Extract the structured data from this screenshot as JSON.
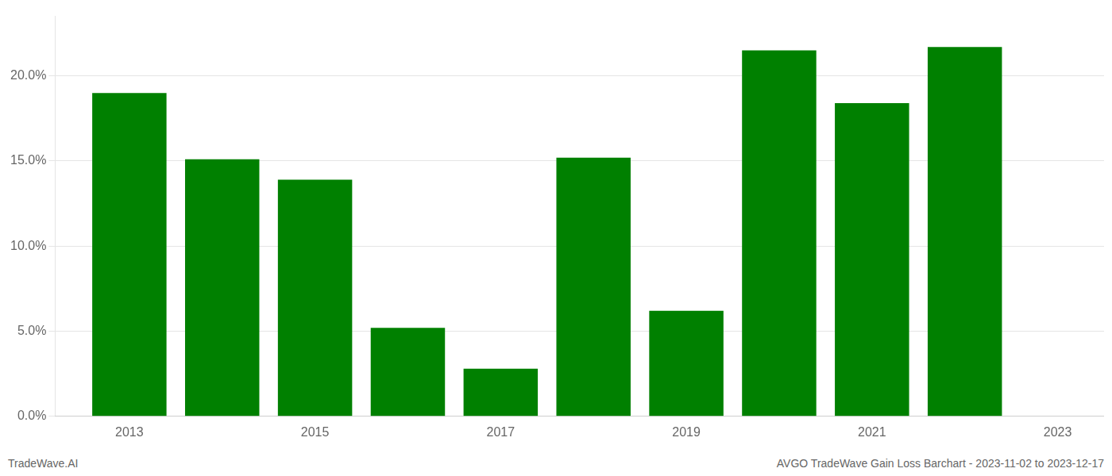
{
  "chart_data": {
    "type": "bar",
    "x": [
      2013,
      2014,
      2015,
      2016,
      2017,
      2018,
      2019,
      2020,
      2021,
      2022
    ],
    "values": [
      0.19,
      0.151,
      0.139,
      0.052,
      0.028,
      0.152,
      0.062,
      0.215,
      0.184,
      0.217
    ],
    "color": "#008000",
    "xlim": [
      2012.2,
      2023.5
    ],
    "xticks": [
      2013,
      2015,
      2017,
      2019,
      2021,
      2023
    ],
    "ylim": [
      0,
      0.235
    ],
    "yticks": [
      {
        "value": 0.0,
        "label": "0.0%"
      },
      {
        "value": 0.05,
        "label": "5.0%"
      },
      {
        "value": 0.1,
        "label": "10.0%"
      },
      {
        "value": 0.15,
        "label": "15.0%"
      },
      {
        "value": 0.2,
        "label": "20.0%"
      }
    ],
    "grid": "y",
    "annotations": [
      "TradeWave.AI",
      "AVGO TradeWave Gain Loss Barchart - 2023-11-02 to 2023-12-17"
    ]
  }
}
